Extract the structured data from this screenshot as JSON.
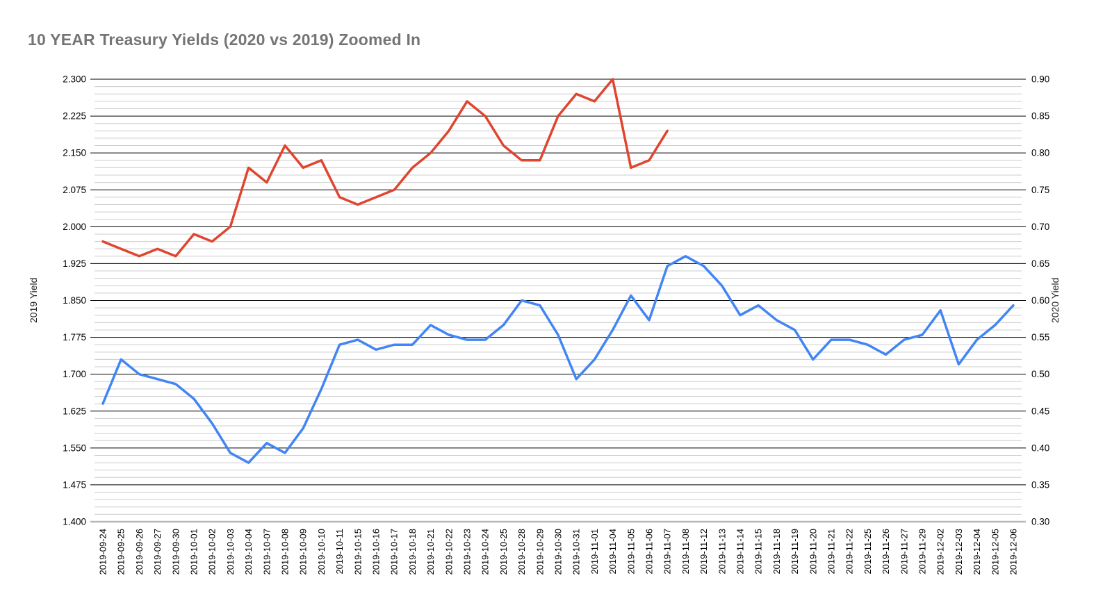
{
  "chart_data": {
    "type": "line",
    "title": "10 YEAR Treasury Yields (2020 vs 2019) Zoomed In",
    "legend": "none",
    "grid": "major-and-minor",
    "categories": [
      "2019-09-24",
      "2019-09-25",
      "2019-09-26",
      "2019-09-27",
      "2019-09-30",
      "2019-10-01",
      "2019-10-02",
      "2019-10-03",
      "2019-10-04",
      "2019-10-07",
      "2019-10-08",
      "2019-10-09",
      "2019-10-10",
      "2019-10-11",
      "2019-10-15",
      "2019-10-16",
      "2019-10-17",
      "2019-10-18",
      "2019-10-21",
      "2019-10-22",
      "2019-10-23",
      "2019-10-24",
      "2019-10-25",
      "2019-10-28",
      "2019-10-29",
      "2019-10-30",
      "2019-10-31",
      "2019-11-01",
      "2019-11-04",
      "2019-11-05",
      "2019-11-06",
      "2019-11-07",
      "2019-11-08",
      "2019-11-12",
      "2019-11-13",
      "2019-11-14",
      "2019-11-15",
      "2019-11-18",
      "2019-11-19",
      "2019-11-20",
      "2019-11-21",
      "2019-11-22",
      "2019-11-25",
      "2019-11-26",
      "2019-11-27",
      "2019-11-29",
      "2019-12-02",
      "2019-12-03",
      "2019-12-04",
      "2019-12-05",
      "2019-12-06"
    ],
    "left_axis": {
      "title": "2019 Yield",
      "min": 1.4,
      "max": 2.3,
      "major_step": 0.075,
      "minor_step": 0.015,
      "tick_labels": [
        "1.400",
        "1.475",
        "1.550",
        "1.625",
        "1.700",
        "1.775",
        "1.850",
        "1.925",
        "2.000",
        "2.075",
        "2.150",
        "2.225",
        "2.300"
      ]
    },
    "right_axis": {
      "title": "2020 Yield",
      "min": 0.3,
      "max": 0.9,
      "major_step": 0.05,
      "minor_step": 0.01,
      "tick_labels": [
        "0.30",
        "0.35",
        "0.40",
        "0.45",
        "0.50",
        "0.55",
        "0.60",
        "0.65",
        "0.70",
        "0.75",
        "0.80",
        "0.85",
        "0.90"
      ]
    },
    "series": [
      {
        "name": "2019 Yield",
        "axis": "left",
        "color": "#4285f4",
        "values": [
          1.64,
          1.73,
          1.7,
          1.69,
          1.68,
          1.65,
          1.6,
          1.54,
          1.52,
          1.56,
          1.54,
          1.59,
          1.67,
          1.76,
          1.77,
          1.75,
          1.76,
          1.76,
          1.8,
          1.78,
          1.77,
          1.77,
          1.8,
          1.85,
          1.84,
          1.78,
          1.69,
          1.73,
          1.79,
          1.86,
          1.81,
          1.92,
          1.94,
          1.92,
          1.88,
          1.82,
          1.84,
          1.81,
          1.79,
          1.73,
          1.77,
          1.77,
          1.76,
          1.74,
          1.77,
          1.78,
          1.83,
          1.72,
          1.77,
          1.8,
          1.84
        ]
      },
      {
        "name": "2020 Yield",
        "axis": "right",
        "color": "#e0452f",
        "values": [
          0.68,
          0.67,
          0.66,
          0.67,
          0.66,
          0.69,
          0.68,
          0.7,
          0.78,
          0.76,
          0.81,
          0.78,
          0.79,
          0.74,
          0.73,
          0.74,
          0.75,
          0.78,
          0.8,
          0.83,
          0.87,
          0.85,
          0.81,
          0.79,
          0.79,
          0.85,
          0.88,
          0.87,
          0.9,
          0.78,
          0.79,
          0.83
        ]
      }
    ],
    "colors": {
      "major_gridline": "#000000",
      "minor_gridline": "#cccccc",
      "baseline": "#b7b7b7",
      "title_text": "#757575",
      "tick_text": "#000000"
    }
  }
}
